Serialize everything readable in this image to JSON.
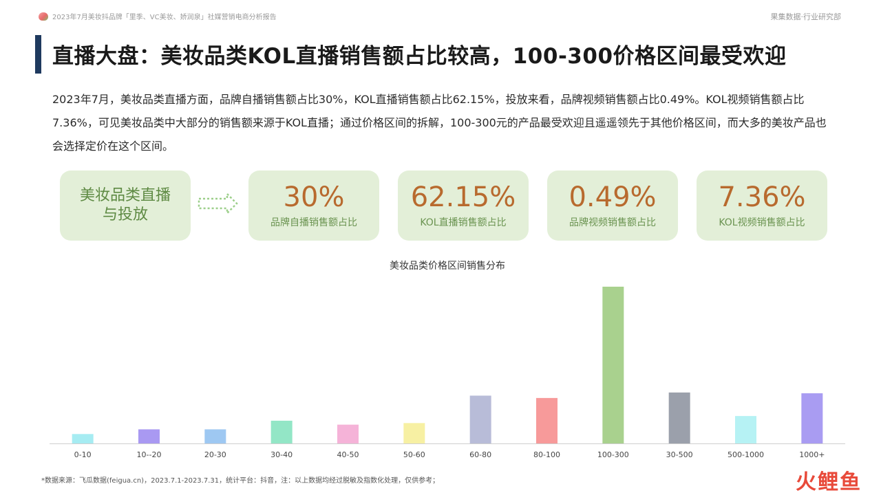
{
  "header": {
    "report_title": "2023年7月美妆抖品牌「里季、VC美妆、娇润泉」社媒营销电商分析报告",
    "source": "果集数据·行业研究部"
  },
  "title": "直播大盘：美妆品类KOL直播销售额占比较高，100-300价格区间最受欢迎",
  "description": "2023年7月，美妆品类直播方面，品牌自播销售额占比30%，KOL直播销售额占比62.15%，投放来看，品牌视频销售额占比0.49%。KOL视频销售额占比7.36%，可见美妆品类中大部分的销售额来源于KOL直播；通过价格区间的拆解，100-300元的产品最受欢迎且遥遥领先于其他价格区间，而大多的美妆产品也会选择定价在这个区间。",
  "category_card": {
    "line1": "美妆品类直播",
    "line2": "与投放"
  },
  "stats": [
    {
      "value": "30%",
      "label": "品牌自播销售额占比"
    },
    {
      "value": "62.15%",
      "label": "KOL直播销售额占比"
    },
    {
      "value": "0.49%",
      "label": "品牌视频销售额占比"
    },
    {
      "value": "7.36%",
      "label": "KOL视频销售额占比"
    }
  ],
  "chart_data": {
    "type": "bar",
    "title": "美妆品类价格区间销售分布",
    "categories": [
      "0-10",
      "10--20",
      "20-30",
      "30-40",
      "40-50",
      "50-60",
      "60-80",
      "80-100",
      "100-300",
      "30-500",
      "500-1000",
      "1000+"
    ],
    "values": [
      6,
      9,
      9,
      14.5,
      12,
      13,
      30.5,
      29,
      100,
      32.5,
      17.5,
      32
    ],
    "colors": [
      "#a6ecf2",
      "#a999f2",
      "#9ec8f2",
      "#93e6c6",
      "#f5b3d8",
      "#f7f0a3",
      "#b8bcd8",
      "#f79a9a",
      "#a9d18e",
      "#9ba0ab",
      "#b6f2f4",
      "#a99cf2"
    ],
    "ylim": [
      0,
      100
    ],
    "grid": false,
    "y_axis_shown": false
  },
  "footer": "*数据来源：飞瓜数据(feigua.cn)，2023.7.1-2023.7.31，统计平台：抖音，注：以上数据均经过脱敏及指数化处理，仅供参考；",
  "brand": "火鲤鱼"
}
